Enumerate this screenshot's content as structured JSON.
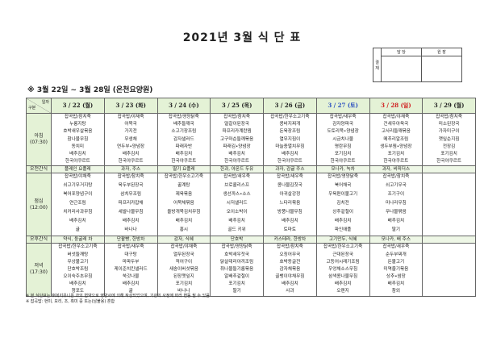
{
  "title": "2021년 3월 식 단 표",
  "approval": {
    "side": "결 재",
    "col1": "담 당",
    "col2": "원 장"
  },
  "subtitle": "※ 3월 22일 ~ 3월 28일 (온천요양원)",
  "corner": {
    "top": "일자",
    "bottom": "구분"
  },
  "days": [
    {
      "label": "3 / 22 (월)",
      "type": "weekday"
    },
    {
      "label": "3 / 23 (화)",
      "type": "weekday"
    },
    {
      "label": "3 / 24 (수)",
      "type": "weekday"
    },
    {
      "label": "3 / 25 (목)",
      "type": "weekday"
    },
    {
      "label": "3 / 26 (금)",
      "type": "weekday"
    },
    {
      "label": "3 / 27 (토)",
      "type": "saturday"
    },
    {
      "label": "3 / 28 (일)",
      "type": "sunday"
    },
    {
      "label": "3 / 29 (월)",
      "type": "weekday"
    }
  ],
  "colors": {
    "header_bg": "#e4f2d6",
    "saturday": "#2a4fc0",
    "sunday": "#d02020"
  },
  "rows": [
    {
      "kind": "meal",
      "label": "아침",
      "time": "(07:30)",
      "cells": [
        [
          "잡곡밥/참치죽",
          "누룽지탕",
          "호박새우살볶음",
          "참나물무침",
          "동치미",
          "배추김치",
          "한국야쿠르트"
        ],
        [
          "잡곡밥/야채죽",
          "어묵국",
          "가지전",
          "무생채",
          "연두부•양념장",
          "배추김치",
          "한국야쿠르트"
        ],
        [
          "잡곡밥/영양닭죽",
          "배추들깨국",
          "소고기장조림",
          "감자샐러드",
          "파래자반",
          "배추김치",
          "한국야쿠르트"
        ],
        [
          "잡곡밥/참치죽",
          "얼갈이된장국",
          "파프리카계란찜",
          "고구마순들깨볶음",
          "파래김•양념장",
          "배추김치",
          "한국야쿠르트"
        ],
        [
          "잡곡밥/한우소고기죽",
          "콩비지찌개",
          "돈육장조림",
          "열무지짐이",
          "마늘종멸치무침",
          "배추김치",
          "한국야쿠르트"
        ],
        [
          "잡곡밥/새우죽",
          "감자양파국",
          "도토리묵•양념장",
          "시금치나물",
          "명란무침",
          "포기김치",
          "한국야쿠르트"
        ],
        [
          "잡곡밥/야채죽",
          "건새우아욱국",
          "고사리들깨볶음",
          "메추리알조림",
          "생두부찜•양념장",
          "포기김치",
          "한국야쿠르트"
        ],
        [
          "잡곡밥/참치죽",
          "미소된장국",
          "가자미구이",
          "깻잎순지짐",
          "전장김",
          "포기김치",
          "한국야쿠르트"
        ]
      ]
    },
    {
      "kind": "snack",
      "label": "오전간식",
      "cells": [
        "플레인 요플레",
        "과자, 주스",
        "딸기 요플레",
        "한과, 아몬드 두유",
        "과자, 감귤 주스",
        "모나카, 녹차",
        "과자, 비피더스",
        ""
      ]
    },
    {
      "kind": "lunch",
      "label": "점심",
      "time": "(12:00)",
      "cells": [
        [
          "잡곡밥/야채죽",
          "쇠고기무거지탕",
          "북어포양념구이",
          "연근조림",
          "치커리사과무침",
          "배추김치",
          "귤"
        ],
        [
          "잡곡밥/참치죽",
          "육두부된장국",
          "삼치무조림",
          "파프리카잡채",
          "세발나물무침",
          "배추김치",
          "바나나"
        ],
        [
          "잡곡밥/한우소고기죽",
          "꿀계탕",
          "제육볶음",
          "어묵채볶음",
          "올방개묵김치무침",
          "배추김치",
          "홍시"
        ],
        [
          "잡곡밥/새우죽",
          "브로콜리스프",
          "생선까스•소스",
          "시저샐러드",
          "오이소박이",
          "배추김치",
          "골드 키위"
        ],
        [
          "잡곡밥/새우죽",
          "콩나물김칫국",
          "아귀살강정",
          "느타리볶음",
          "방풍나물무침",
          "배추김치",
          "토마토"
        ],
        [
          "잡곡밥/영양닭죽",
          "북어채국",
          "우육편이불고기",
          "김치전",
          "상추겉절이",
          "배추김치",
          "파인애플"
        ],
        [
          "잡곡밥/참치죽",
          "쇠고기무국",
          "조기구이",
          "미나리무침",
          "무나물볶음",
          "배추김치",
          "딸기"
        ],
        []
      ]
    },
    {
      "kind": "snack",
      "label": "오후간식",
      "cells": [
        "약식, 둥굴레 차",
        "단팥빵, 한방차",
        "감자, 식혜",
        "단호박",
        "카스테라, 한방차",
        "고기만두, 식혜",
        "모나카, 배 주스",
        ""
      ]
    },
    {
      "kind": "meal",
      "label": "저녁",
      "time": "(17:30)",
      "cells": [
        [
          "잡곡밥/한우소고기죽",
          "버섯들깨탕",
          "무상불고기",
          "단호박조림",
          "오이숙주초무침",
          "배추김치",
          "청포도"
        ],
        [
          "잡곡밥/새우죽",
          "대구탕",
          "마파두부",
          "케이준치킨샐러드",
          "쑥갓나물",
          "배추김치",
          "귤"
        ],
        [
          "잡곡밥/야채죽",
          "열무된장국",
          "적어구이",
          "새송이버섯볶음",
          "된장깻잎지",
          "포기김치",
          "바나나"
        ],
        [
          "잡곡밥/영양닭죽",
          "호박새우젓국",
          "닭살데리야끼조림",
          "취나물들기름볶음",
          "알배추겉절이",
          "포기김치",
          "딸기"
        ],
        [
          "잡곡밥/참치죽",
          "오징어무국",
          "호박동글전",
          "감자채볶음",
          "골뱅이야채무침",
          "배추김치",
          "사과"
        ],
        [
          "잡곡밥/한우소고기죽",
          "근대된장국",
          "고등어시래기조림",
          "우엉채소스무침",
          "삼색콩나물무침",
          "배추김치",
          "오렌지"
        ],
        [
          "잡곡밥/새우죽",
          "순두부찌개",
          "돈불고기",
          "미역줄기볶음",
          "상추•쌈장",
          "배추김치",
          "참외"
        ],
        []
      ]
    }
  ],
  "notes": [
    "※ 본 식단표는 ㈜복지유니온 과의 협약으로 영양사에 의해 작성되었으며, 기관의 사정에 따라 변동 될 수 있음",
    "※ 잡곡밥: 현미, 보리, 조, 흑미 중 또는(남불용) 혼합"
  ]
}
